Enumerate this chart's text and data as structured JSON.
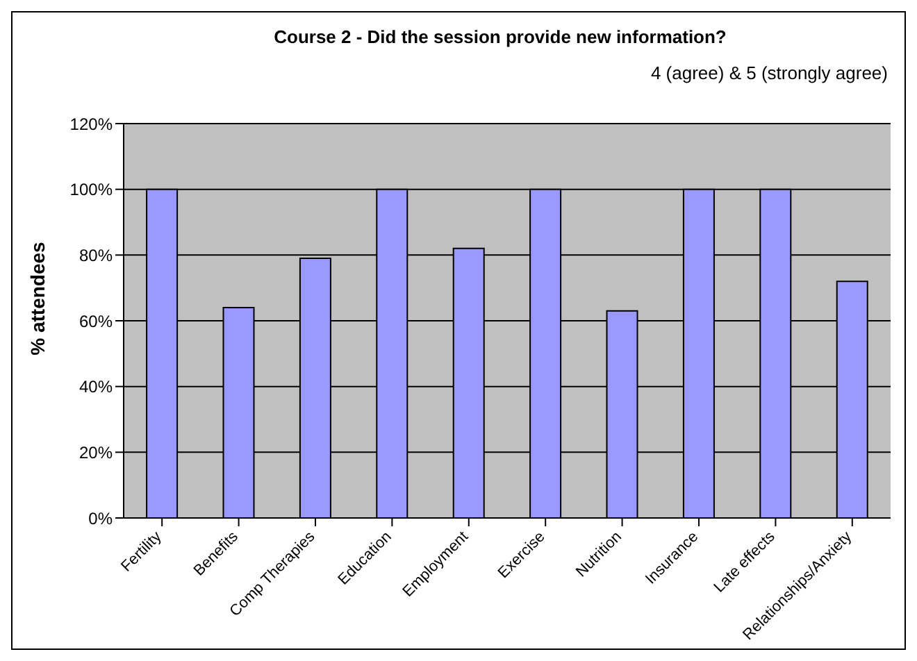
{
  "chart_data": {
    "type": "bar",
    "title": "Course 2 - Did the session provide new information?",
    "subtitle": "4 (agree) & 5 (strongly agree)",
    "ylabel": "% attendees",
    "categories": [
      "Fertility",
      "Benefits",
      "Comp Therapies",
      "Education",
      "Employment",
      "Exercise",
      "Nutrition",
      "Insurance",
      "Late effects",
      "Relationships/Anxiety"
    ],
    "values": [
      100,
      64,
      79,
      100,
      82,
      100,
      63,
      100,
      100,
      72
    ],
    "color": "#9999ff",
    "ylim": [
      0,
      120
    ],
    "yticks": [
      {
        "value": 0,
        "label": "0%"
      },
      {
        "value": 20,
        "label": "20%"
      },
      {
        "value": 40,
        "label": "40%"
      },
      {
        "value": 60,
        "label": "60%"
      },
      {
        "value": 80,
        "label": "80%"
      },
      {
        "value": 100,
        "label": "100%"
      },
      {
        "value": 120,
        "label": "120%"
      }
    ],
    "grid": "y",
    "legend": false
  }
}
